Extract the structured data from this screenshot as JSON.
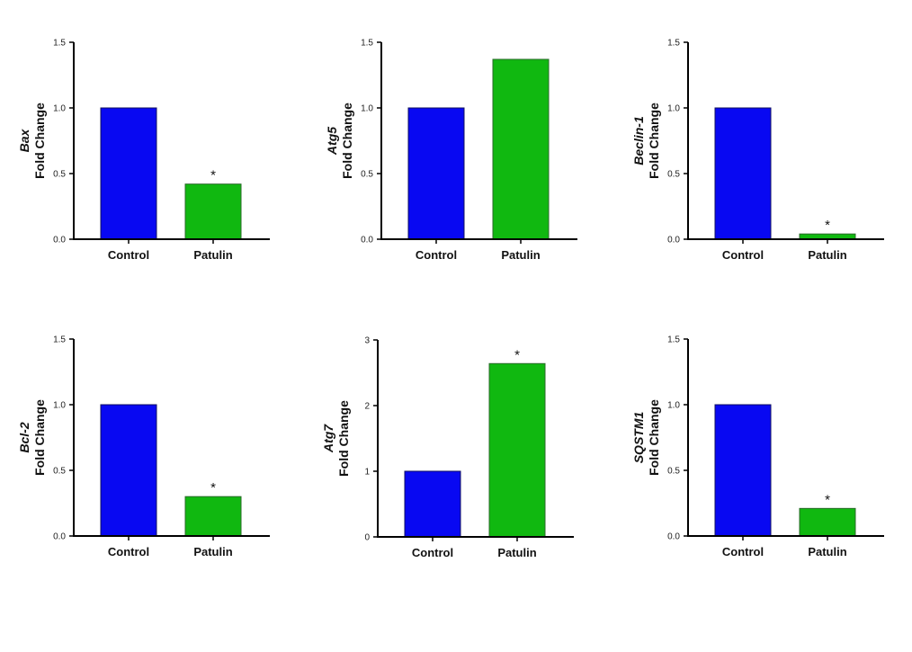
{
  "chart_data": [
    {
      "type": "bar",
      "gene": "Bax",
      "ylabel": "Fold Change",
      "categories": [
        "Control",
        "Patulin"
      ],
      "values": [
        1.0,
        0.42
      ],
      "ylim": [
        0,
        1.5
      ],
      "yticks": [
        "0.0",
        "0.5",
        "1.0",
        "1.5"
      ],
      "significant": [
        false,
        true
      ],
      "annotation": "*"
    },
    {
      "type": "bar",
      "gene": "Atg5",
      "ylabel": "Fold Change",
      "categories": [
        "Control",
        "Patulin"
      ],
      "values": [
        1.0,
        1.37
      ],
      "ylim": [
        0,
        1.5
      ],
      "yticks": [
        "0.0",
        "0.5",
        "1.0",
        "1.5"
      ],
      "significant": [
        false,
        false
      ],
      "annotation": "*"
    },
    {
      "type": "bar",
      "gene": "Beclin-1",
      "ylabel": "Fold Change",
      "categories": [
        "Control",
        "Patulin"
      ],
      "values": [
        1.0,
        0.04
      ],
      "ylim": [
        0,
        1.5
      ],
      "yticks": [
        "0.0",
        "0.5",
        "1.0",
        "1.5"
      ],
      "significant": [
        false,
        true
      ],
      "annotation": "*"
    },
    {
      "type": "bar",
      "gene": "Bcl-2",
      "ylabel": "Fold Change",
      "categories": [
        "Control",
        "Patulin"
      ],
      "values": [
        1.0,
        0.3
      ],
      "ylim": [
        0,
        1.5
      ],
      "yticks": [
        "0.0",
        "0.5",
        "1.0",
        "1.5"
      ],
      "significant": [
        false,
        true
      ],
      "annotation": "*"
    },
    {
      "type": "bar",
      "gene": "Atg7",
      "ylabel": "Fold Change",
      "categories": [
        "Control",
        "Patulin"
      ],
      "values": [
        1.0,
        2.64
      ],
      "ylim": [
        0,
        3
      ],
      "yticks": [
        "0",
        "1",
        "2",
        "3"
      ],
      "significant": [
        false,
        true
      ],
      "annotation": "*"
    },
    {
      "type": "bar",
      "gene": "SQSTM1",
      "ylabel": "Fold Change",
      "categories": [
        "Control",
        "Patulin"
      ],
      "values": [
        1.0,
        0.21
      ],
      "ylim": [
        0,
        1.5
      ],
      "yticks": [
        "0.0",
        "0.5",
        "1.0",
        "1.5"
      ],
      "significant": [
        false,
        true
      ],
      "annotation": "*"
    }
  ],
  "colors": {
    "control": "#0808f2",
    "patulin": "#10b810",
    "edge": "#1a3a1a",
    "axis": "#000000"
  }
}
